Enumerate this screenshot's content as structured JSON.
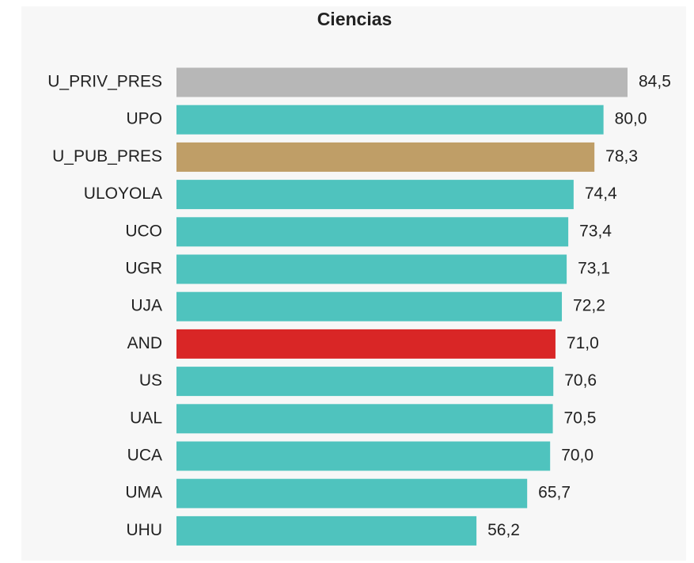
{
  "chart_data": {
    "type": "barh",
    "title": "Ciencias",
    "categories": [
      "U_PRIV_PRES",
      "UPO",
      "U_PUB_PRES",
      "ULOYOLA",
      "UCO",
      "UGR",
      "UJA",
      "AND",
      "US",
      "UAL",
      "UCA",
      "UMA",
      "UHU"
    ],
    "values": [
      84.5,
      80.0,
      78.3,
      74.4,
      73.4,
      73.1,
      72.2,
      71.0,
      70.6,
      70.5,
      70.0,
      65.7,
      56.2
    ],
    "value_labels": [
      "84,5",
      "80,0",
      "78,3",
      "74,4",
      "73,4",
      "73,1",
      "72,2",
      "71,0",
      "70,6",
      "70,5",
      "70,0",
      "65,7",
      "56,2"
    ],
    "colors": [
      "#b7b7b7",
      "#4fc3be",
      "#bf9e67",
      "#4fc3be",
      "#4fc3be",
      "#4fc3be",
      "#4fc3be",
      "#d92626",
      "#4fc3be",
      "#4fc3be",
      "#4fc3be",
      "#4fc3be",
      "#4fc3be"
    ]
  }
}
